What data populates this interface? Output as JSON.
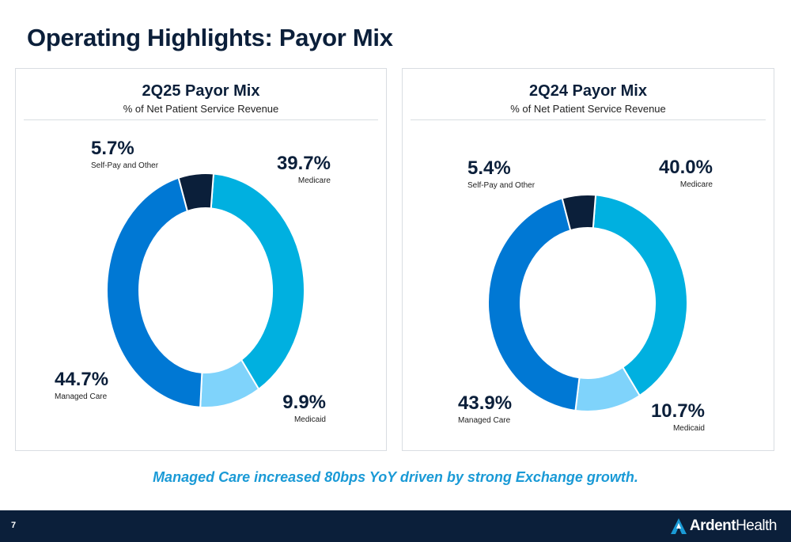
{
  "title": "Operating Highlights: Payor Mix",
  "callout": "Managed Care increased 80bps YoY driven by strong Exchange growth.",
  "page_number": "7",
  "logo": {
    "word1": "Ardent",
    "word2": "Health",
    "icon": "ardent-a-logo-icon"
  },
  "colors": {
    "Medicare": "#00b0e0",
    "Medicaid": "#7fd3fb",
    "Managed Care": "#0078d4",
    "Self-Pay and Other": "#0b1f3a"
  },
  "chart_data": [
    {
      "type": "pie",
      "title": "2Q25 Payor Mix",
      "subtitle": "% of Net Patient Service Revenue",
      "categories": [
        "Medicare",
        "Medicaid",
        "Managed Care",
        "Self-Pay and Other"
      ],
      "values": [
        39.7,
        9.9,
        44.7,
        5.7
      ],
      "value_labels": [
        "39.7%",
        "9.9%",
        "44.7%",
        "5.7%"
      ],
      "legend": "none",
      "donut": true
    },
    {
      "type": "pie",
      "title": "2Q24 Payor Mix",
      "subtitle": "% of Net Patient Service Revenue",
      "categories": [
        "Medicare",
        "Medicaid",
        "Managed Care",
        "Self-Pay and Other"
      ],
      "values": [
        40.0,
        10.7,
        43.9,
        5.4
      ],
      "value_labels": [
        "40.0%",
        "10.7%",
        "43.9%",
        "5.4%"
      ],
      "legend": "none",
      "donut": true
    }
  ]
}
